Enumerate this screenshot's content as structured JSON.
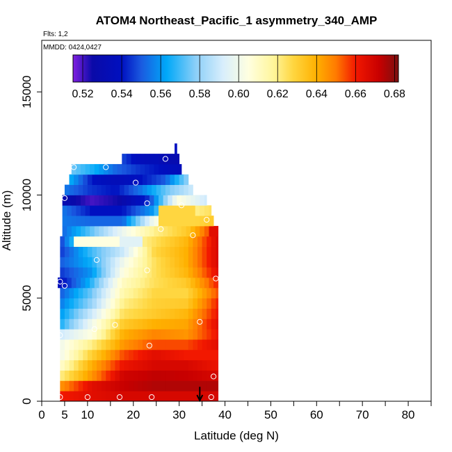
{
  "chart_data": {
    "type": "heatmap",
    "title": "ATOM4 Northeast_Pacific_1 asymmetry_340_AMP",
    "flights_label": "Flts: 1,2",
    "date_label": "MMDD: 0424,0427",
    "xlabel": "Latitude (deg N)",
    "ylabel": "Altitude (m)",
    "xlim": [
      0,
      85
    ],
    "ylim": [
      0,
      17500
    ],
    "xticks_major": [
      0,
      5,
      10,
      20,
      30,
      40,
      50,
      60,
      70,
      80
    ],
    "xticks_minor": [
      15,
      25,
      35,
      45,
      55,
      65,
      75,
      85
    ],
    "yticks": [
      0,
      5000,
      10000,
      15000
    ],
    "colorbar": {
      "min": 0.515,
      "max": 0.682,
      "ticks": [
        0.52,
        0.54,
        0.56,
        0.58,
        0.6,
        0.62,
        0.64,
        0.66,
        0.68
      ],
      "stops": [
        {
          "v": 0.515,
          "c": "#8020e0"
        },
        {
          "v": 0.525,
          "c": "#0a0aa8"
        },
        {
          "v": 0.54,
          "c": "#0010c0"
        },
        {
          "v": 0.55,
          "c": "#1a5ae0"
        },
        {
          "v": 0.563,
          "c": "#00a8f8"
        },
        {
          "v": 0.578,
          "c": "#8ccff8"
        },
        {
          "v": 0.592,
          "c": "#d8eefc"
        },
        {
          "v": 0.605,
          "c": "#ffffe0"
        },
        {
          "v": 0.618,
          "c": "#fff59a"
        },
        {
          "v": 0.628,
          "c": "#ffd640"
        },
        {
          "v": 0.64,
          "c": "#ffb000"
        },
        {
          "v": 0.65,
          "c": "#ff7a00"
        },
        {
          "v": 0.66,
          "c": "#f21800"
        },
        {
          "v": 0.672,
          "c": "#c80000"
        },
        {
          "v": 0.682,
          "c": "#7a1010"
        }
      ]
    },
    "rows": [
      {
        "alt": [
          0,
          500
        ],
        "x0": 4,
        "x1": 38.5,
        "v": [
          0.66,
          0.665,
          0.668,
          0.668,
          0.668,
          0.668
        ]
      },
      {
        "alt": [
          500,
          1000
        ],
        "x0": 4,
        "x1": 38.5,
        "v": [
          0.645,
          0.665,
          0.672,
          0.675,
          0.675,
          0.675
        ]
      },
      {
        "alt": [
          1000,
          1500
        ],
        "x0": 4,
        "x1": 38.5,
        "v": [
          0.62,
          0.645,
          0.67,
          0.673,
          0.672,
          0.668
        ]
      },
      {
        "alt": [
          1500,
          2000
        ],
        "x0": 4,
        "x1": 38.5,
        "v": [
          0.608,
          0.64,
          0.662,
          0.668,
          0.668,
          0.662
        ]
      },
      {
        "alt": [
          2000,
          2500
        ],
        "x0": 4,
        "x1": 38.5,
        "v": [
          0.6,
          0.63,
          0.655,
          0.665,
          0.66,
          0.66
        ]
      },
      {
        "alt": [
          2500,
          3000
        ],
        "x0": 4,
        "x1": 38.5,
        "v": [
          0.6,
          0.62,
          0.645,
          0.655,
          0.655,
          0.665
        ]
      },
      {
        "alt": [
          3000,
          3500
        ],
        "x0": 4,
        "x1": 38.5,
        "v": [
          0.59,
          0.605,
          0.64,
          0.648,
          0.645,
          0.662
        ]
      },
      {
        "alt": [
          3500,
          4000
        ],
        "x0": 4,
        "x1": 38.5,
        "v": [
          0.565,
          0.6,
          0.632,
          0.64,
          0.642,
          0.665
        ]
      },
      {
        "alt": [
          4000,
          4500
        ],
        "x0": 4,
        "x1": 38.5,
        "v": [
          0.56,
          0.59,
          0.625,
          0.632,
          0.638,
          0.662
        ]
      },
      {
        "alt": [
          4500,
          5000
        ],
        "x0": 4,
        "x1": 38.5,
        "v": [
          0.555,
          0.58,
          0.62,
          0.63,
          0.632,
          0.66
        ]
      },
      {
        "alt": [
          5000,
          5500
        ],
        "x0": 4,
        "x1": 38.5,
        "v": [
          0.55,
          0.575,
          0.615,
          0.628,
          0.628,
          0.655
        ]
      },
      {
        "alt": [
          5500,
          6000
        ],
        "x0": 3.5,
        "x1": 38.5,
        "v": [
          0.535,
          0.565,
          0.61,
          0.625,
          0.632,
          0.66
        ]
      },
      {
        "alt": [
          6000,
          6500
        ],
        "x0": 4,
        "x1": 38.5,
        "v": [
          0.545,
          0.56,
          0.605,
          0.625,
          0.638,
          0.665
        ]
      },
      {
        "alt": [
          6500,
          7000
        ],
        "x0": 4,
        "x1": 38.5,
        "v": [
          0.55,
          0.565,
          0.6,
          0.625,
          0.64,
          0.668
        ]
      },
      {
        "alt": [
          7000,
          7500
        ],
        "x0": 4,
        "x1": 38.5,
        "v": [
          0.545,
          0.57,
          0.59,
          0.628,
          0.64,
          0.668
        ]
      },
      {
        "alt": [
          7500,
          8000
        ],
        "x0": 4,
        "x1": 38.5,
        "v": [
          0.545,
          0.6,
          0.61,
          0.625,
          0.638,
          0.668
        ]
      },
      {
        "alt": [
          8000,
          8500
        ],
        "x0": 4.5,
        "x1": 38.5,
        "v": [
          0.552,
          0.575,
          0.6,
          0.62,
          0.632,
          0.665
        ]
      },
      {
        "alt": [
          8500,
          9000
        ],
        "x0": 4.5,
        "x1": 37.5,
        "v": [
          0.555,
          0.552,
          0.552,
          0.6,
          0.625,
          0.632
        ]
      },
      {
        "alt": [
          9000,
          9500
        ],
        "x0": 4.5,
        "x1": 37,
        "v": [
          0.555,
          0.54,
          0.54,
          0.56,
          0.615,
          0.625
        ]
      },
      {
        "alt": [
          9500,
          10000
        ],
        "x0": 4.5,
        "x1": 36,
        "v": [
          0.53,
          0.52,
          0.525,
          0.545,
          0.605,
          0.59
        ]
      },
      {
        "alt": [
          10000,
          10500
        ],
        "x0": 5,
        "x1": 33,
        "v": [
          0.555,
          0.545,
          0.54,
          0.555,
          0.575,
          0.59
        ]
      },
      {
        "alt": [
          10500,
          11000
        ],
        "x0": 6,
        "x1": 32,
        "v": [
          0.565,
          0.54,
          0.535,
          0.54,
          0.55,
          0.58
        ]
      },
      {
        "alt": [
          11000,
          11500
        ],
        "x0": 6.5,
        "x1": 30.5,
        "v": [
          0.575,
          0.565,
          0.552,
          0.545,
          0.54,
          0.535
        ]
      },
      {
        "alt": [
          11500,
          12000
        ],
        "x0": 17.5,
        "x1": 30,
        "v": [
          0.548,
          0.54,
          0.535,
          0.535,
          0.53,
          0.53
        ]
      },
      {
        "alt": [
          12000,
          12500
        ],
        "x0": 29,
        "x1": 29.5,
        "v": [
          0.54,
          0.54,
          0.54,
          0.54,
          0.54,
          0.54
        ]
      }
    ],
    "overrides": [
      {
        "x": [
          7,
          17
        ],
        "alt": [
          7400,
          8100
        ],
        "v": 0.605
      },
      {
        "x": [
          17,
          22
        ],
        "alt": [
          7400,
          8100
        ],
        "v": 0.595
      },
      {
        "x": [
          26,
          33
        ],
        "alt": [
          8700,
          9600
        ],
        "v": 0.628
      },
      {
        "x": [
          37,
          38.5
        ],
        "alt": [
          8000,
          8600
        ],
        "v": 0.665
      }
    ],
    "circles": [
      {
        "x": 4,
        "alt": 200
      },
      {
        "x": 10,
        "alt": 200
      },
      {
        "x": 17,
        "alt": 200
      },
      {
        "x": 24,
        "alt": 200
      },
      {
        "x": 37,
        "alt": 200
      },
      {
        "x": 37.5,
        "alt": 1200
      },
      {
        "x": 23.5,
        "alt": 2700
      },
      {
        "x": 4,
        "alt": 3200
      },
      {
        "x": 11.5,
        "alt": 3500
      },
      {
        "x": 16,
        "alt": 3700
      },
      {
        "x": 34.5,
        "alt": 3850
      },
      {
        "x": 4,
        "alt": 5800
      },
      {
        "x": 5,
        "alt": 5600
      },
      {
        "x": 38,
        "alt": 5950
      },
      {
        "x": 23,
        "alt": 6350
      },
      {
        "x": 12,
        "alt": 6850
      },
      {
        "x": 33,
        "alt": 8050
      },
      {
        "x": 26,
        "alt": 8350
      },
      {
        "x": 36,
        "alt": 8800
      },
      {
        "x": 23,
        "alt": 9600
      },
      {
        "x": 30.5,
        "alt": 9500
      },
      {
        "x": 5,
        "alt": 9850
      },
      {
        "x": 20.5,
        "alt": 10600
      },
      {
        "x": 7,
        "alt": 11350
      },
      {
        "x": 14,
        "alt": 11350
      },
      {
        "x": 27,
        "alt": 11750
      }
    ],
    "arrow": {
      "x": 34.5,
      "alt_top": 700,
      "alt_bottom": 0
    }
  }
}
